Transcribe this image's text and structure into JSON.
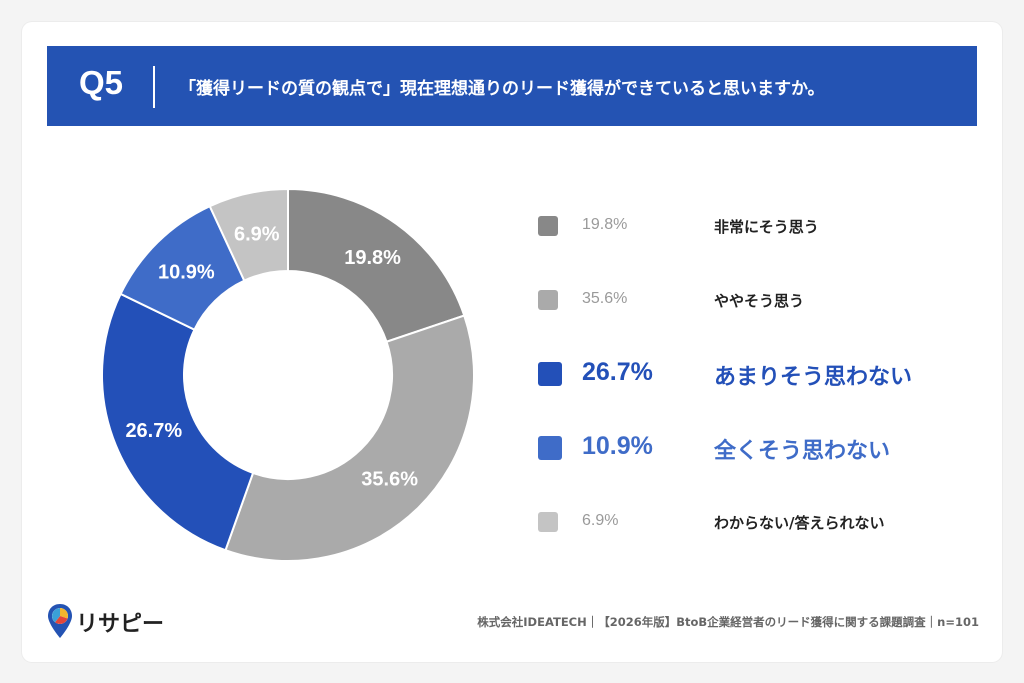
{
  "header": {
    "q_label": "Q5",
    "question": "「獲得リードの質の観点で」現在理想通りのリード獲得ができていると思いますか。",
    "bg_color": "#2453b3"
  },
  "chart_data": {
    "type": "pie",
    "donut": true,
    "categories": [
      "非常にそう思う",
      "ややそう思う",
      "あまりそう思わない",
      "全くそう思わない",
      "わからない/答えられない"
    ],
    "values": [
      19.8,
      35.6,
      26.7,
      10.9,
      6.9
    ],
    "value_labels": [
      "19.8%",
      "35.6%",
      "26.7%",
      "10.9%",
      "6.9%"
    ],
    "colors": [
      "#888888",
      "#aaaaaa",
      "#2350b8",
      "#3f6cc8",
      "#c4c4c4"
    ],
    "highlighted": [
      false,
      false,
      true,
      true,
      false
    ],
    "legend_position": "right"
  },
  "footer": {
    "logo_text": "リサピー",
    "source": "株式会社IDEATECH｜【2026年版】BtoB企業経営者のリード獲得に関する課題調査｜n=101"
  }
}
